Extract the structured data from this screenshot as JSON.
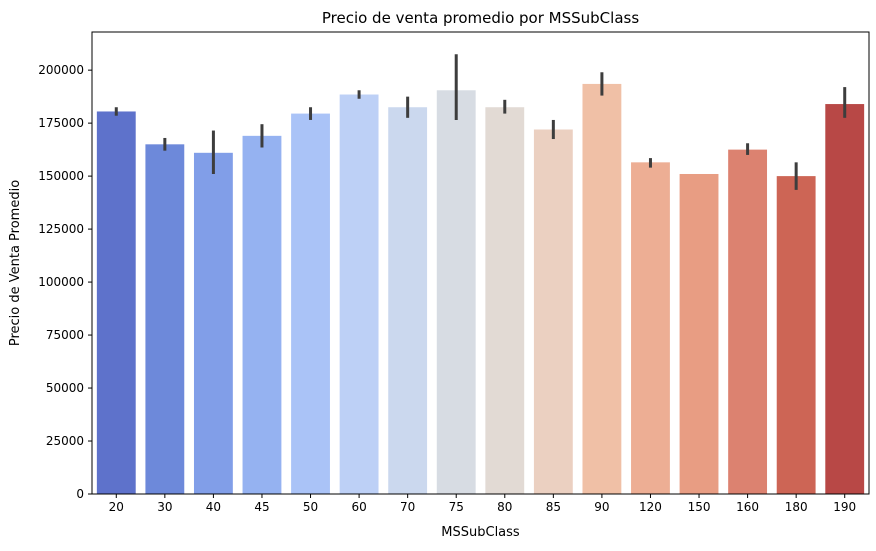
{
  "chart_data": {
    "type": "bar",
    "title": "Precio de venta promedio por MSSubClass",
    "xlabel": "MSSubClass",
    "ylabel": "Precio de Venta Promedio",
    "categories": [
      "20",
      "30",
      "40",
      "45",
      "50",
      "60",
      "70",
      "75",
      "80",
      "85",
      "90",
      "120",
      "150",
      "160",
      "180",
      "190"
    ],
    "values": [
      180500,
      165000,
      161000,
      169000,
      179500,
      188500,
      182500,
      190500,
      182500,
      172000,
      193500,
      156500,
      151000,
      162500,
      150000,
      184000
    ],
    "error_bars": [
      [
        178500,
        182500
      ],
      [
        162000,
        168000
      ],
      [
        151000,
        171500
      ],
      [
        163500,
        174500
      ],
      [
        176500,
        182500
      ],
      [
        186500,
        190500
      ],
      [
        177500,
        187500
      ],
      [
        176500,
        207500
      ],
      [
        179500,
        186000
      ],
      [
        167500,
        176500
      ],
      [
        188000,
        199000
      ],
      [
        154000,
        158500
      ],
      [
        151000,
        151000
      ],
      [
        160000,
        165500
      ],
      [
        143500,
        156500
      ],
      [
        177500,
        192000
      ]
    ],
    "colors": [
      "#5e72cb",
      "#6d89da",
      "#819ee8",
      "#95b2f1",
      "#aac3f7",
      "#bdd0f6",
      "#cbd8ee",
      "#d7dce3",
      "#e2dad4",
      "#ebd0c1",
      "#f0c0a6",
      "#edae94",
      "#e89d83",
      "#dc8270",
      "#cd6555",
      "#b84846"
    ],
    "ylim": [
      0,
      218000
    ],
    "yticks": [
      0,
      25000,
      50000,
      75000,
      100000,
      125000,
      150000,
      175000,
      200000
    ],
    "grid": false,
    "legend": "none"
  }
}
